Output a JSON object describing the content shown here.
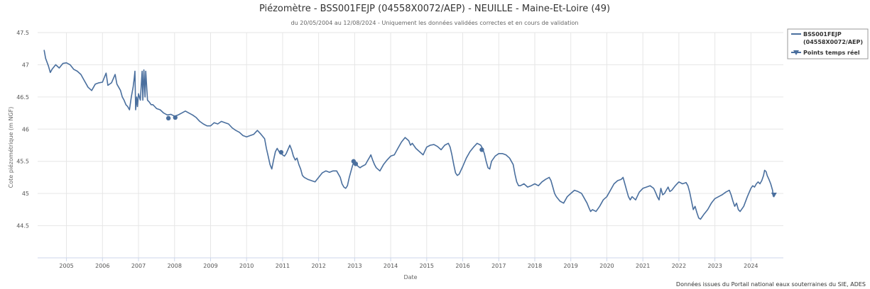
{
  "chart_data": {
    "type": "line",
    "title": "Piézomètre - BSS001FEJP (04558X0072/AEP) - NEUILLE - Maine-Et-Loire (49)",
    "subtitle": "du 20/05/2004 au 12/08/2024 - Uniquement les données validées correctes et en cours de validation",
    "xlabel": "Date",
    "ylabel": "Cote piézométrique (m NGF)",
    "ylim": [
      44,
      47.5
    ],
    "xlim": [
      2004.2,
      2024.9
    ],
    "y_ticks": [
      "44.5",
      "45",
      "45.5",
      "46",
      "46.5",
      "47",
      "47.5"
    ],
    "x_ticks": [
      "2005",
      "2006",
      "2007",
      "2008",
      "2009",
      "2010",
      "2011",
      "2012",
      "2013",
      "2014",
      "2015",
      "2016",
      "2017",
      "2018",
      "2019",
      "2020",
      "2021",
      "2022",
      "2023",
      "2024"
    ],
    "grid": true,
    "legend_position": "top-right",
    "legend": [
      {
        "label": "BSS001FEJP",
        "label2": "(04558X0072/AEP)",
        "symbol": "line"
      },
      {
        "label": "Points temps réel",
        "symbol": "triangle-down"
      }
    ],
    "credits": "Données issues du Portail national eaux souterraines du SIE, ADES",
    "series": [
      {
        "name": "BSS001FEJP (04558X0072/AEP)",
        "color": "#4a6f9e",
        "points": [
          [
            2004.38,
            47.23
          ],
          [
            2004.42,
            47.1
          ],
          [
            2004.5,
            46.98
          ],
          [
            2004.55,
            46.88
          ],
          [
            2004.6,
            46.93
          ],
          [
            2004.7,
            47.0
          ],
          [
            2004.8,
            46.95
          ],
          [
            2004.9,
            47.02
          ],
          [
            2005.0,
            47.03
          ],
          [
            2005.1,
            47.0
          ],
          [
            2005.2,
            46.93
          ],
          [
            2005.3,
            46.9
          ],
          [
            2005.4,
            46.85
          ],
          [
            2005.5,
            46.75
          ],
          [
            2005.6,
            46.65
          ],
          [
            2005.7,
            46.6
          ],
          [
            2005.8,
            46.7
          ],
          [
            2005.9,
            46.72
          ],
          [
            2006.0,
            46.73
          ],
          [
            2006.05,
            46.8
          ],
          [
            2006.1,
            46.87
          ],
          [
            2006.15,
            46.68
          ],
          [
            2006.25,
            46.72
          ],
          [
            2006.35,
            46.85
          ],
          [
            2006.4,
            46.7
          ],
          [
            2006.5,
            46.6
          ],
          [
            2006.55,
            46.5
          ],
          [
            2006.6,
            46.45
          ],
          [
            2006.65,
            46.38
          ],
          [
            2006.7,
            46.35
          ],
          [
            2006.75,
            46.3
          ],
          [
            2006.8,
            46.5
          ],
          [
            2006.85,
            46.65
          ],
          [
            2006.88,
            46.78
          ],
          [
            2006.9,
            46.9
          ],
          [
            2006.92,
            46.3
          ],
          [
            2006.95,
            46.5
          ],
          [
            2006.97,
            46.35
          ],
          [
            2007.0,
            46.55
          ],
          [
            2007.05,
            46.45
          ],
          [
            2007.1,
            46.9
          ],
          [
            2007.12,
            46.45
          ],
          [
            2007.15,
            46.92
          ],
          [
            2007.18,
            46.5
          ],
          [
            2007.2,
            46.9
          ],
          [
            2007.25,
            46.45
          ],
          [
            2007.3,
            46.42
          ],
          [
            2007.35,
            46.38
          ],
          [
            2007.4,
            46.38
          ],
          [
            2007.45,
            46.35
          ],
          [
            2007.5,
            46.32
          ],
          [
            2007.6,
            46.3
          ],
          [
            2007.7,
            46.25
          ],
          [
            2007.8,
            46.22
          ],
          [
            2007.9,
            46.23
          ],
          [
            2008.0,
            46.2
          ],
          [
            2008.1,
            46.22
          ],
          [
            2008.2,
            46.25
          ],
          [
            2008.3,
            46.28
          ],
          [
            2008.4,
            46.25
          ],
          [
            2008.5,
            46.22
          ],
          [
            2008.6,
            46.18
          ],
          [
            2008.7,
            46.12
          ],
          [
            2008.8,
            46.08
          ],
          [
            2008.9,
            46.05
          ],
          [
            2009.0,
            46.05
          ],
          [
            2009.1,
            46.1
          ],
          [
            2009.2,
            46.08
          ],
          [
            2009.3,
            46.12
          ],
          [
            2009.4,
            46.1
          ],
          [
            2009.5,
            46.08
          ],
          [
            2009.6,
            46.02
          ],
          [
            2009.7,
            45.98
          ],
          [
            2009.8,
            45.95
          ],
          [
            2009.9,
            45.9
          ],
          [
            2010.0,
            45.88
          ],
          [
            2010.1,
            45.9
          ],
          [
            2010.2,
            45.92
          ],
          [
            2010.3,
            45.98
          ],
          [
            2010.4,
            45.92
          ],
          [
            2010.5,
            45.85
          ],
          [
            2010.55,
            45.7
          ],
          [
            2010.6,
            45.58
          ],
          [
            2010.65,
            45.45
          ],
          [
            2010.7,
            45.38
          ],
          [
            2010.75,
            45.52
          ],
          [
            2010.8,
            45.65
          ],
          [
            2010.85,
            45.7
          ],
          [
            2010.9,
            45.65
          ],
          [
            2010.95,
            45.63
          ],
          [
            2011.0,
            45.6
          ],
          [
            2011.05,
            45.58
          ],
          [
            2011.1,
            45.62
          ],
          [
            2011.2,
            45.75
          ],
          [
            2011.25,
            45.68
          ],
          [
            2011.3,
            45.58
          ],
          [
            2011.35,
            45.52
          ],
          [
            2011.4,
            45.55
          ],
          [
            2011.45,
            45.45
          ],
          [
            2011.5,
            45.38
          ],
          [
            2011.55,
            45.28
          ],
          [
            2011.6,
            45.25
          ],
          [
            2011.7,
            45.22
          ],
          [
            2011.8,
            45.2
          ],
          [
            2011.9,
            45.18
          ],
          [
            2012.0,
            45.25
          ],
          [
            2012.1,
            45.32
          ],
          [
            2012.2,
            45.35
          ],
          [
            2012.3,
            45.33
          ],
          [
            2012.4,
            45.35
          ],
          [
            2012.5,
            45.35
          ],
          [
            2012.6,
            45.25
          ],
          [
            2012.65,
            45.15
          ],
          [
            2012.7,
            45.1
          ],
          [
            2012.75,
            45.08
          ],
          [
            2012.8,
            45.12
          ],
          [
            2012.85,
            45.25
          ],
          [
            2012.9,
            45.35
          ],
          [
            2012.95,
            45.45
          ],
          [
            2013.0,
            45.5
          ],
          [
            2013.05,
            45.45
          ],
          [
            2013.1,
            45.42
          ],
          [
            2013.15,
            45.4
          ],
          [
            2013.2,
            45.42
          ],
          [
            2013.3,
            45.45
          ],
          [
            2013.35,
            45.5
          ],
          [
            2013.4,
            45.55
          ],
          [
            2013.45,
            45.6
          ],
          [
            2013.5,
            45.52
          ],
          [
            2013.55,
            45.45
          ],
          [
            2013.6,
            45.4
          ],
          [
            2013.7,
            45.35
          ],
          [
            2013.8,
            45.45
          ],
          [
            2013.9,
            45.52
          ],
          [
            2014.0,
            45.58
          ],
          [
            2014.1,
            45.6
          ],
          [
            2014.2,
            45.7
          ],
          [
            2014.3,
            45.8
          ],
          [
            2014.4,
            45.87
          ],
          [
            2014.5,
            45.82
          ],
          [
            2014.55,
            45.75
          ],
          [
            2014.6,
            45.78
          ],
          [
            2014.7,
            45.7
          ],
          [
            2014.8,
            45.65
          ],
          [
            2014.9,
            45.6
          ],
          [
            2015.0,
            45.72
          ],
          [
            2015.1,
            45.75
          ],
          [
            2015.2,
            45.76
          ],
          [
            2015.3,
            45.73
          ],
          [
            2015.4,
            45.68
          ],
          [
            2015.5,
            45.75
          ],
          [
            2015.6,
            45.78
          ],
          [
            2015.65,
            45.72
          ],
          [
            2015.7,
            45.6
          ],
          [
            2015.75,
            45.45
          ],
          [
            2015.8,
            45.32
          ],
          [
            2015.85,
            45.28
          ],
          [
            2015.9,
            45.3
          ],
          [
            2016.0,
            45.42
          ],
          [
            2016.1,
            45.55
          ],
          [
            2016.2,
            45.65
          ],
          [
            2016.3,
            45.72
          ],
          [
            2016.4,
            45.78
          ],
          [
            2016.5,
            45.75
          ],
          [
            2016.55,
            45.7
          ],
          [
            2016.6,
            45.62
          ],
          [
            2016.65,
            45.5
          ],
          [
            2016.7,
            45.4
          ],
          [
            2016.75,
            45.38
          ],
          [
            2016.8,
            45.5
          ],
          [
            2016.9,
            45.58
          ],
          [
            2017.0,
            45.62
          ],
          [
            2017.1,
            45.62
          ],
          [
            2017.2,
            45.6
          ],
          [
            2017.3,
            45.55
          ],
          [
            2017.4,
            45.45
          ],
          [
            2017.45,
            45.3
          ],
          [
            2017.5,
            45.18
          ],
          [
            2017.55,
            45.12
          ],
          [
            2017.6,
            45.12
          ],
          [
            2017.7,
            45.15
          ],
          [
            2017.8,
            45.1
          ],
          [
            2017.9,
            45.12
          ],
          [
            2018.0,
            45.15
          ],
          [
            2018.1,
            45.12
          ],
          [
            2018.2,
            45.18
          ],
          [
            2018.3,
            45.22
          ],
          [
            2018.4,
            45.25
          ],
          [
            2018.45,
            45.2
          ],
          [
            2018.5,
            45.1
          ],
          [
            2018.55,
            45.0
          ],
          [
            2018.6,
            44.95
          ],
          [
            2018.7,
            44.88
          ],
          [
            2018.8,
            44.85
          ],
          [
            2018.9,
            44.95
          ],
          [
            2019.0,
            45.0
          ],
          [
            2019.1,
            45.05
          ],
          [
            2019.2,
            45.03
          ],
          [
            2019.3,
            45.0
          ],
          [
            2019.35,
            44.95
          ],
          [
            2019.4,
            44.9
          ],
          [
            2019.45,
            44.85
          ],
          [
            2019.5,
            44.78
          ],
          [
            2019.55,
            44.72
          ],
          [
            2019.6,
            44.75
          ],
          [
            2019.7,
            44.72
          ],
          [
            2019.8,
            44.8
          ],
          [
            2019.9,
            44.9
          ],
          [
            2020.0,
            44.95
          ],
          [
            2020.1,
            45.05
          ],
          [
            2020.2,
            45.15
          ],
          [
            2020.3,
            45.2
          ],
          [
            2020.4,
            45.22
          ],
          [
            2020.45,
            45.25
          ],
          [
            2020.5,
            45.15
          ],
          [
            2020.55,
            45.05
          ],
          [
            2020.6,
            44.95
          ],
          [
            2020.65,
            44.9
          ],
          [
            2020.7,
            44.95
          ],
          [
            2020.8,
            44.9
          ],
          [
            2020.9,
            45.02
          ],
          [
            2021.0,
            45.08
          ],
          [
            2021.1,
            45.1
          ],
          [
            2021.2,
            45.12
          ],
          [
            2021.3,
            45.08
          ],
          [
            2021.35,
            45.02
          ],
          [
            2021.4,
            44.95
          ],
          [
            2021.45,
            44.9
          ],
          [
            2021.5,
            45.08
          ],
          [
            2021.55,
            44.98
          ],
          [
            2021.6,
            45.0
          ],
          [
            2021.65,
            45.05
          ],
          [
            2021.7,
            45.1
          ],
          [
            2021.75,
            45.03
          ],
          [
            2021.8,
            45.05
          ],
          [
            2021.9,
            45.12
          ],
          [
            2022.0,
            45.18
          ],
          [
            2022.1,
            45.15
          ],
          [
            2022.2,
            45.17
          ],
          [
            2022.25,
            45.12
          ],
          [
            2022.3,
            45.02
          ],
          [
            2022.35,
            44.88
          ],
          [
            2022.4,
            44.75
          ],
          [
            2022.45,
            44.8
          ],
          [
            2022.5,
            44.7
          ],
          [
            2022.55,
            44.62
          ],
          [
            2022.6,
            44.6
          ],
          [
            2022.7,
            44.68
          ],
          [
            2022.8,
            44.75
          ],
          [
            2022.9,
            44.85
          ],
          [
            2023.0,
            44.92
          ],
          [
            2023.1,
            44.95
          ],
          [
            2023.2,
            44.98
          ],
          [
            2023.3,
            45.02
          ],
          [
            2023.4,
            45.05
          ],
          [
            2023.45,
            44.98
          ],
          [
            2023.5,
            44.88
          ],
          [
            2023.55,
            44.8
          ],
          [
            2023.6,
            44.85
          ],
          [
            2023.65,
            44.75
          ],
          [
            2023.7,
            44.72
          ],
          [
            2023.8,
            44.8
          ],
          [
            2023.9,
            44.95
          ],
          [
            2024.0,
            45.08
          ],
          [
            2024.05,
            45.12
          ],
          [
            2024.1,
            45.1
          ],
          [
            2024.15,
            45.15
          ],
          [
            2024.2,
            45.18
          ],
          [
            2024.25,
            45.15
          ],
          [
            2024.3,
            45.2
          ],
          [
            2024.35,
            45.28
          ],
          [
            2024.38,
            45.36
          ],
          [
            2024.42,
            45.34
          ],
          [
            2024.45,
            45.28
          ],
          [
            2024.5,
            45.22
          ],
          [
            2024.55,
            45.15
          ],
          [
            2024.6,
            45.05
          ],
          [
            2024.62,
            44.95
          ]
        ]
      },
      {
        "name": "Points temps réel",
        "color": "#4a6f9e",
        "points": [
          [
            2024.64,
            44.98
          ]
        ]
      }
    ],
    "markers": [
      [
        2007.83,
        46.17
      ],
      [
        2008.02,
        46.18
      ],
      [
        2010.96,
        45.64
      ],
      [
        2012.97,
        45.5
      ],
      [
        2013.03,
        45.46
      ],
      [
        2016.53,
        45.68
      ]
    ]
  }
}
